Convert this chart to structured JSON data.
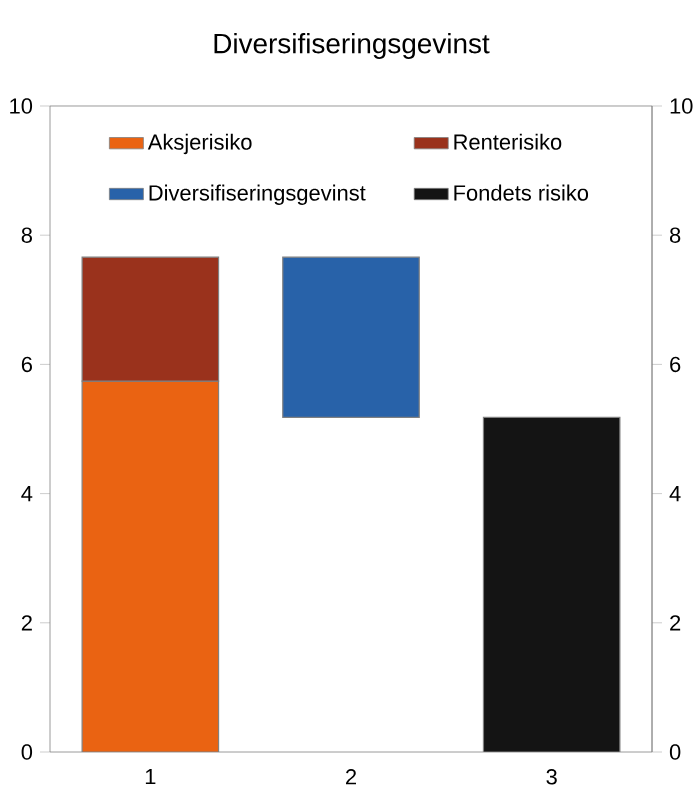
{
  "chart_data": {
    "type": "bar",
    "title": "Diversifiseringsgevinst",
    "categories": [
      "1",
      "2",
      "3"
    ],
    "stacked": true,
    "series": [
      {
        "name": "Aksjerisiko",
        "color": "#ea6312",
        "values": [
          5.74,
          null,
          null
        ]
      },
      {
        "name": "Renterisiko",
        "color": "#9a321c",
        "values": [
          1.92,
          null,
          null
        ]
      },
      {
        "name": "Diversifiseringsgevinst",
        "color": "#2862a9",
        "values": [
          null,
          2.48,
          null
        ],
        "base": [
          null,
          5.18,
          null
        ]
      },
      {
        "name": "Fondets risiko",
        "color": "#141414",
        "values": [
          null,
          null,
          5.18
        ]
      }
    ],
    "ylim": [
      0,
      10
    ],
    "yticks": [
      0,
      2,
      4,
      6,
      8,
      10
    ],
    "y2lim": [
      0,
      10
    ],
    "y2ticks": [
      0,
      2,
      4,
      6,
      8,
      10
    ],
    "legend": "top",
    "grid": false
  }
}
